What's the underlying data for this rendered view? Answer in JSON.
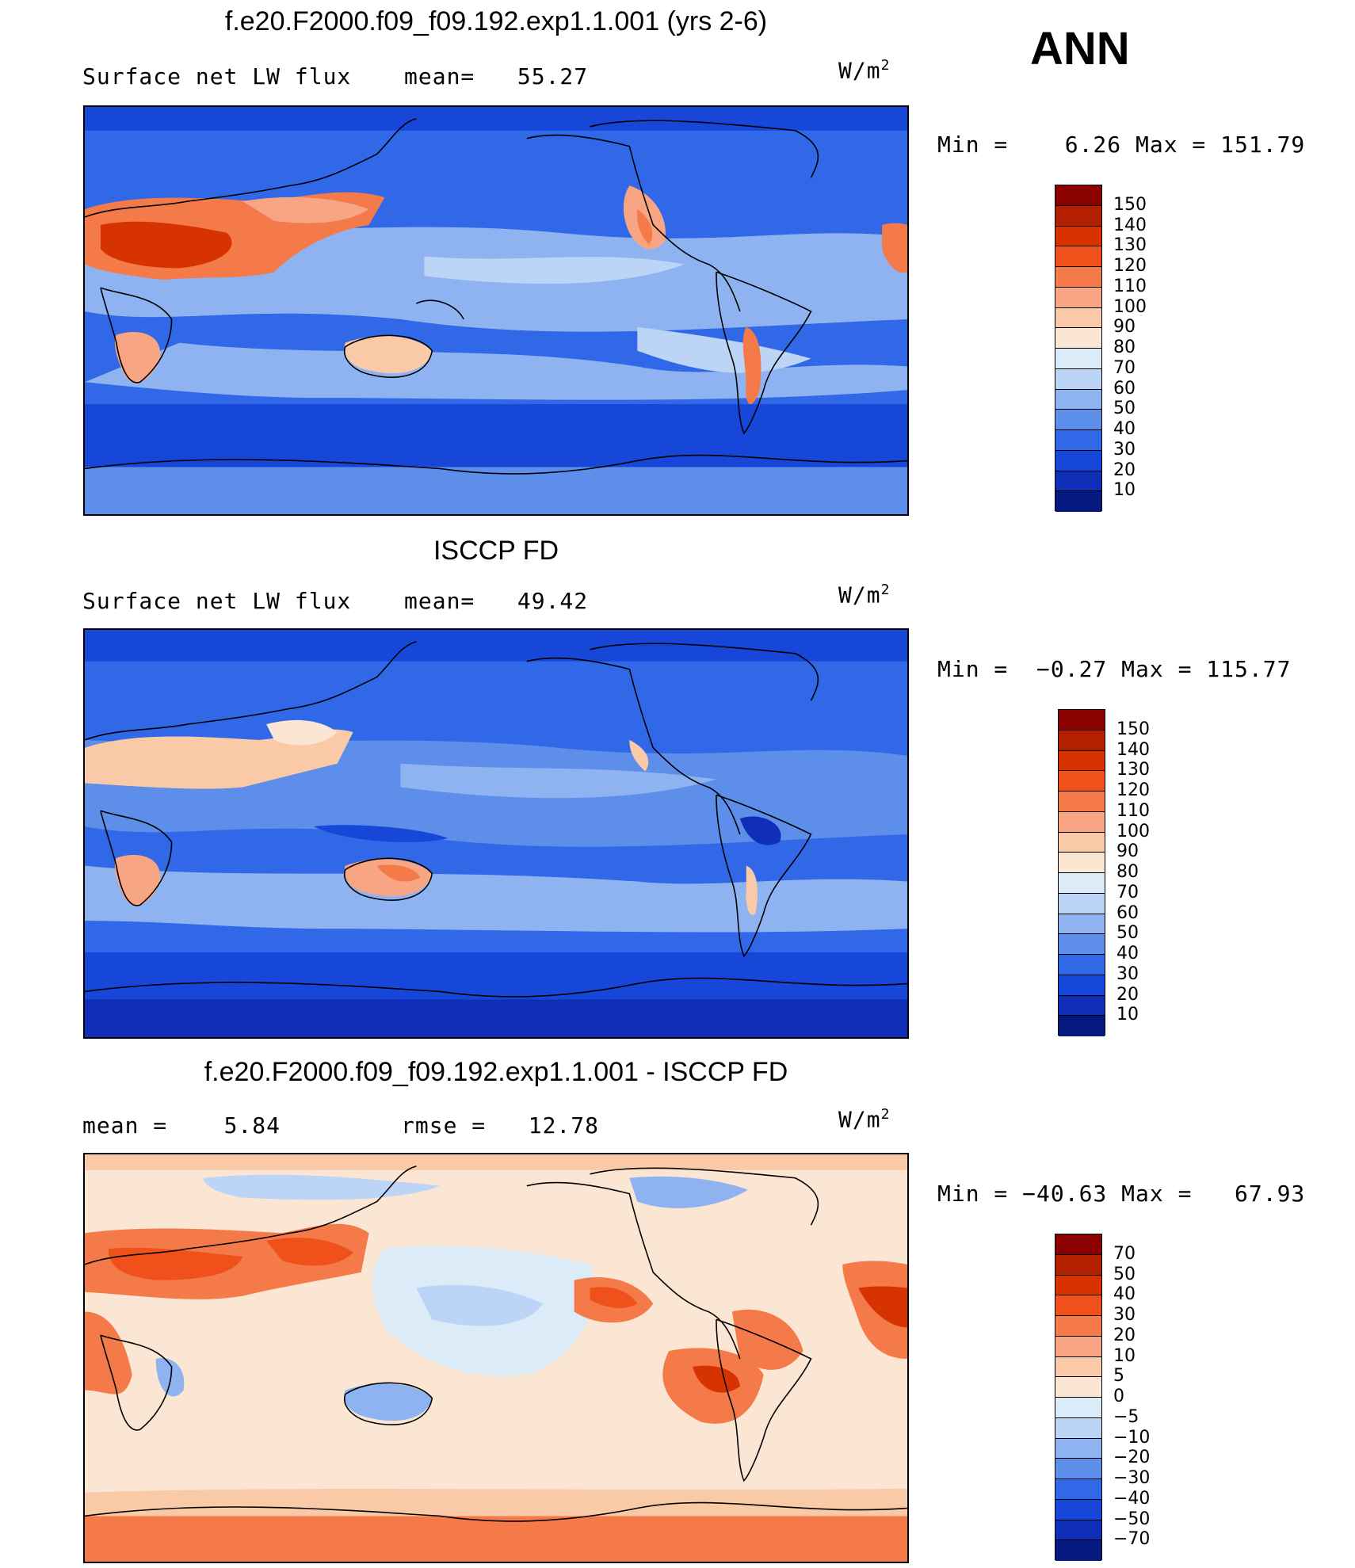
{
  "season": "ANN",
  "panel1": {
    "title": "f.e20.F2000.f09_f09.192.exp1.1.001 (yrs 2-6)",
    "variable": "Surface net LW flux",
    "stat": "mean=   55.27",
    "units": "W/m",
    "units_exp": "2",
    "minmax": "Min =    6.26 Max = 151.79"
  },
  "panel2": {
    "title": "ISCCP FD",
    "variable": "Surface net LW flux",
    "stat": "mean=   49.42",
    "units": "W/m",
    "units_exp": "2",
    "minmax": "Min =  −0.27 Max = 115.77"
  },
  "panel3": {
    "title": "f.e20.F2000.f09_f09.192.exp1.1.001 - ISCCP FD",
    "stat_mean": "mean =    5.84",
    "stat_rmse": "rmse =   12.78",
    "units": "W/m",
    "units_exp": "2",
    "minmax": "Min = −40.63 Max =   67.93"
  },
  "colorbar_abs": {
    "labels": [
      "150",
      "140",
      "130",
      "120",
      "110",
      "100",
      "90",
      "80",
      "70",
      "60",
      "50",
      "40",
      "30",
      "20",
      "10"
    ],
    "colors": [
      "#8b0000",
      "#b22000",
      "#d63300",
      "#f0501a",
      "#f47a4a",
      "#f7a582",
      "#f9c9a8",
      "#fbe6d4",
      "#dcebf8",
      "#bcd4f5",
      "#8fb3f0",
      "#5c8eea",
      "#3168e8",
      "#1747d8",
      "#0f2fb8",
      "#041880"
    ]
  },
  "colorbar_diff": {
    "labels": [
      "70",
      "50",
      "40",
      "30",
      "20",
      "10",
      "5",
      "0",
      "−5",
      "−10",
      "−20",
      "−30",
      "−40",
      "−50",
      "−70"
    ],
    "colors": [
      "#8b0000",
      "#b22000",
      "#d63300",
      "#f0501a",
      "#f47a4a",
      "#f7a582",
      "#f9c9a8",
      "#fbe6d4",
      "#dcebf8",
      "#bcd4f5",
      "#8fb3f0",
      "#5c8eea",
      "#3168e8",
      "#1747d8",
      "#0f2fb8",
      "#041880"
    ]
  }
}
